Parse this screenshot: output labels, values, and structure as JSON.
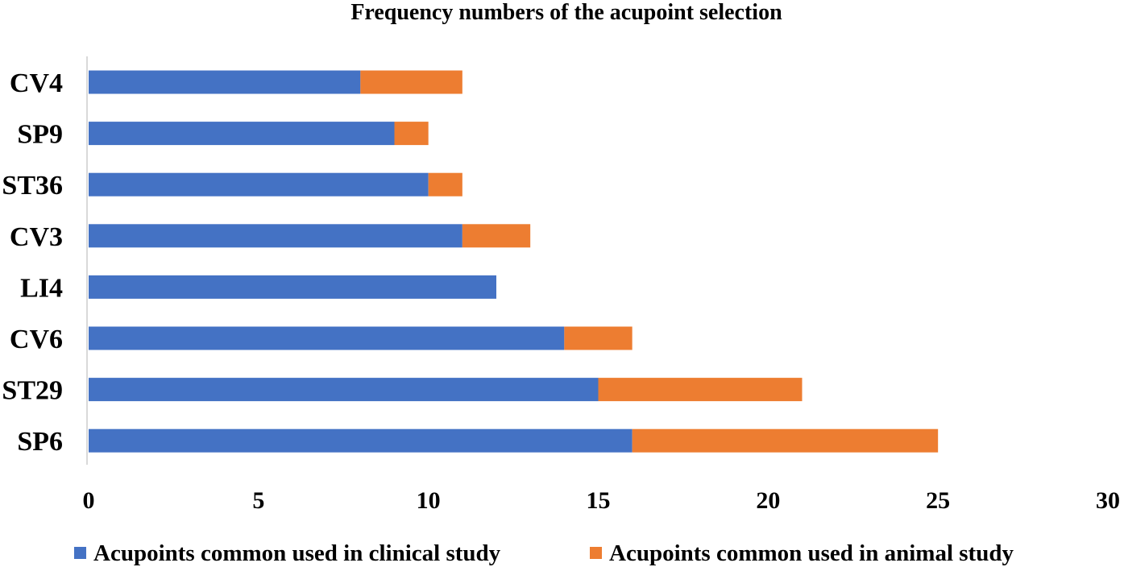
{
  "chart_data": {
    "type": "bar",
    "orientation": "horizontal",
    "stacked": true,
    "title": "Frequency numbers of the acupoint selection",
    "categories": [
      "CV4",
      "SP9",
      "ST36",
      "CV3",
      "LI4",
      "CV6",
      "ST29",
      "SP6"
    ],
    "series": [
      {
        "name": "Acupoints common used in clinical study",
        "values": [
          8,
          9,
          10,
          11,
          12,
          14,
          15,
          16
        ],
        "color": "#4472C4"
      },
      {
        "name": "Acupoints common used in animal study",
        "values": [
          3,
          1,
          1,
          2,
          0,
          2,
          6,
          9
        ],
        "color": "#ED7D31"
      }
    ],
    "x_ticks": [
      "0",
      "5",
      "10",
      "15",
      "20",
      "25",
      "30"
    ],
    "xlim": [
      0,
      30
    ],
    "grid": false,
    "legend_position": "bottom"
  }
}
